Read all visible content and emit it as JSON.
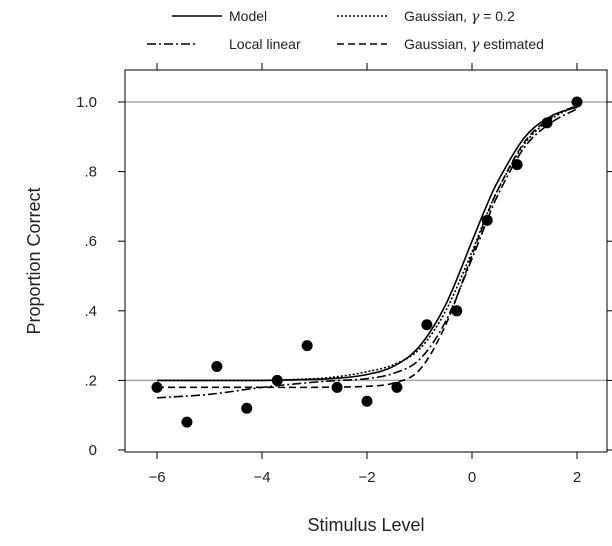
{
  "chart_data": {
    "type": "line",
    "xlabel": "Stimulus Level",
    "ylabel": "Proportion Correct",
    "xlim": [
      -6.5,
      2.5
    ],
    "ylim": [
      0,
      1.05
    ],
    "x_ticks": [
      -6,
      -4,
      -2,
      0,
      2
    ],
    "x_tick_labels": [
      "−6",
      "−4",
      "−2",
      "0",
      "2"
    ],
    "y_ticks": [
      0,
      0.2,
      0.4,
      0.6,
      0.8,
      1.0
    ],
    "y_tick_labels": [
      "0",
      ".2",
      ".4",
      ".6",
      ".8",
      "1.0"
    ],
    "reference_lines_y": [
      0.2,
      1.0
    ],
    "grid": false,
    "legend_position": "top",
    "legend": [
      {
        "label": "Model",
        "style": "solid"
      },
      {
        "label": "Local linear",
        "style": "dashdot"
      },
      {
        "label_prefix": "Gaussian, ",
        "gamma_symbol": "γ",
        "label_suffix": " = 0.2",
        "style": "dotted"
      },
      {
        "label_prefix": "Gaussian, ",
        "gamma_symbol": "γ",
        "label_suffix": " estimated",
        "style": "dashed"
      }
    ],
    "points": {
      "x": [
        -6.0,
        -5.43,
        -4.86,
        -4.29,
        -3.71,
        -3.14,
        -2.57,
        -2.0,
        -1.43,
        -0.86,
        -0.29,
        0.29,
        0.86,
        1.43,
        2.0
      ],
      "y": [
        0.18,
        0.08,
        0.24,
        0.12,
        0.2,
        0.3,
        0.18,
        0.14,
        0.18,
        0.36,
        0.4,
        0.66,
        0.82,
        0.94,
        1.0
      ]
    },
    "series": [
      {
        "name": "Model",
        "style": "solid",
        "color": "#000000",
        "x": [
          -6,
          -5,
          -4,
          -3,
          -2.5,
          -2,
          -1.5,
          -1,
          -0.5,
          0,
          0.25,
          0.5,
          1,
          1.5,
          2
        ],
        "y": [
          0.2,
          0.2,
          0.2,
          0.203,
          0.207,
          0.217,
          0.24,
          0.298,
          0.418,
          0.6,
          0.692,
          0.774,
          0.898,
          0.959,
          0.985
        ]
      },
      {
        "name": "Gaussian, γ = 0.2",
        "style": "dotted",
        "color": "#000000",
        "x": [
          -6,
          -5,
          -4,
          -3,
          -2.5,
          -2,
          -1.5,
          -1,
          -0.5,
          0,
          0.25,
          0.5,
          1,
          1.5,
          2
        ],
        "y": [
          0.2,
          0.2,
          0.2,
          0.205,
          0.212,
          0.225,
          0.245,
          0.29,
          0.4,
          0.57,
          0.665,
          0.75,
          0.88,
          0.95,
          0.99
        ]
      },
      {
        "name": "Local linear",
        "style": "dashdot",
        "color": "#000000",
        "x": [
          -6,
          -5,
          -4,
          -3,
          -2.5,
          -2,
          -1.5,
          -1,
          -0.5,
          0,
          0.25,
          0.5,
          1,
          1.5,
          2
        ],
        "y": [
          0.15,
          0.16,
          0.18,
          0.195,
          0.2,
          0.205,
          0.22,
          0.26,
          0.37,
          0.55,
          0.645,
          0.735,
          0.87,
          0.94,
          0.98
        ]
      },
      {
        "name": "Gaussian, γ estimated",
        "style": "dashed",
        "color": "#000000",
        "x": [
          -6,
          -5,
          -4,
          -3,
          -2.5,
          -2,
          -1.5,
          -1,
          -0.5,
          0,
          0.25,
          0.5,
          1,
          1.5,
          2
        ],
        "y": [
          0.18,
          0.18,
          0.18,
          0.18,
          0.181,
          0.183,
          0.192,
          0.23,
          0.36,
          0.56,
          0.66,
          0.75,
          0.885,
          0.955,
          0.99
        ]
      }
    ]
  }
}
